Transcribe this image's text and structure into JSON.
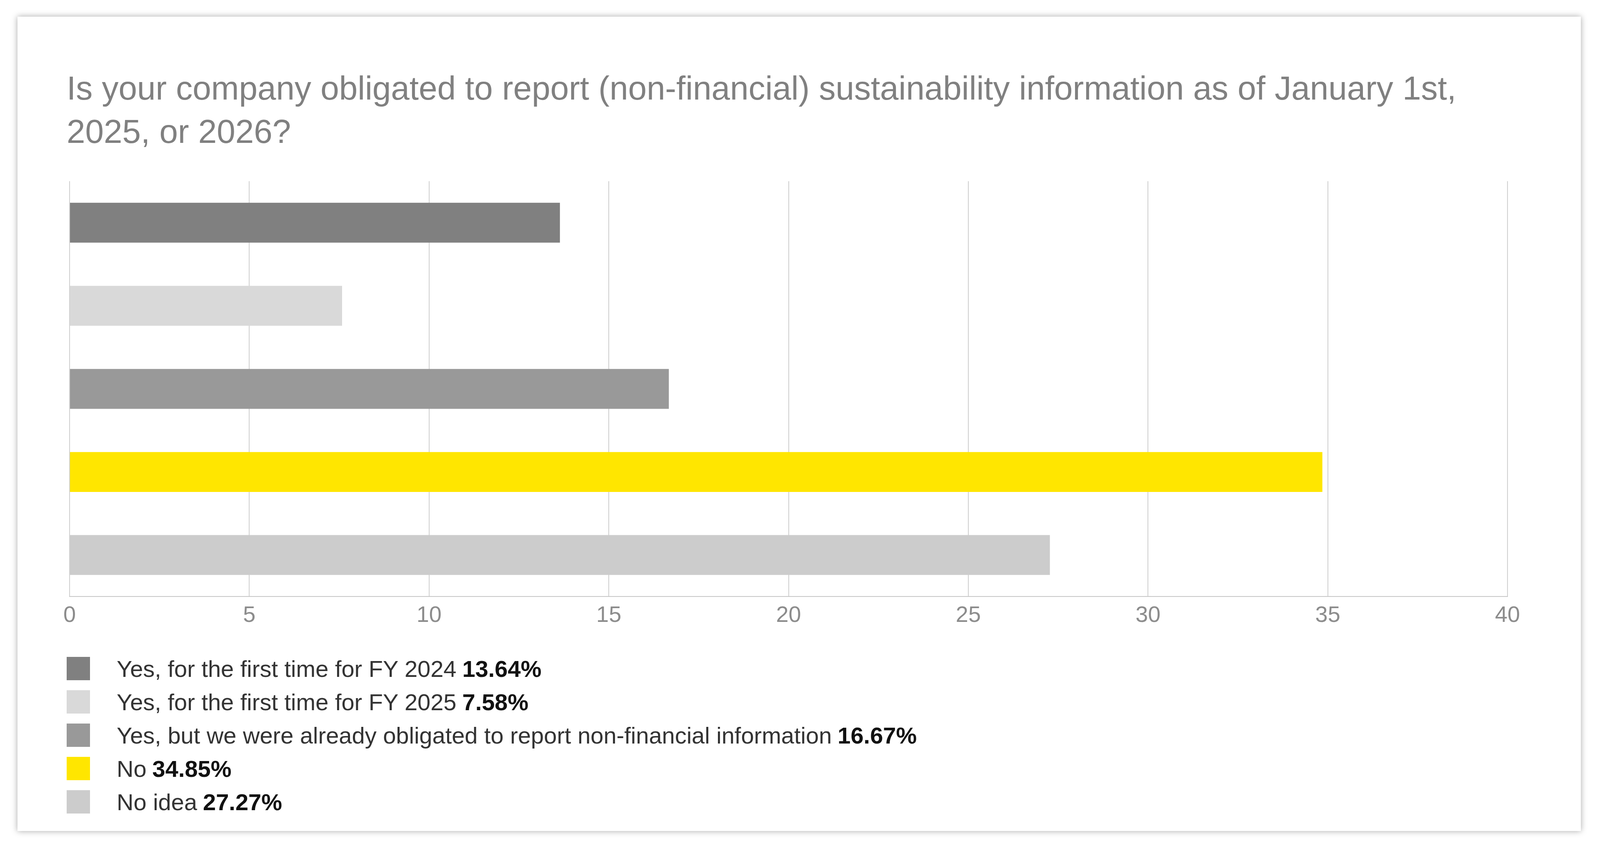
{
  "chart_data": {
    "type": "bar",
    "orientation": "horizontal",
    "title": "Is your company obligated to report (non-financial) sustainability information as of January 1st, 2025, or 2026?",
    "categories": [
      "Yes, for the first time for FY 2024",
      "Yes, for the first time for FY 2025",
      "Yes, but we were already obligated to report non-financial information",
      "No",
      "No idea"
    ],
    "values": [
      13.64,
      7.58,
      16.67,
      34.85,
      27.27
    ],
    "value_labels": [
      "13.64%",
      "7.58%",
      "16.67%",
      "34.85%",
      "27.27%"
    ],
    "colors": [
      "#808080",
      "#d9d9d9",
      "#999999",
      "#ffe600",
      "#cccccc"
    ],
    "xlim": [
      0,
      40
    ],
    "xticks": [
      0,
      5,
      10,
      15,
      20,
      25,
      30,
      35,
      40
    ],
    "grid": true,
    "legend": "bottom",
    "tick_labels": "x"
  }
}
